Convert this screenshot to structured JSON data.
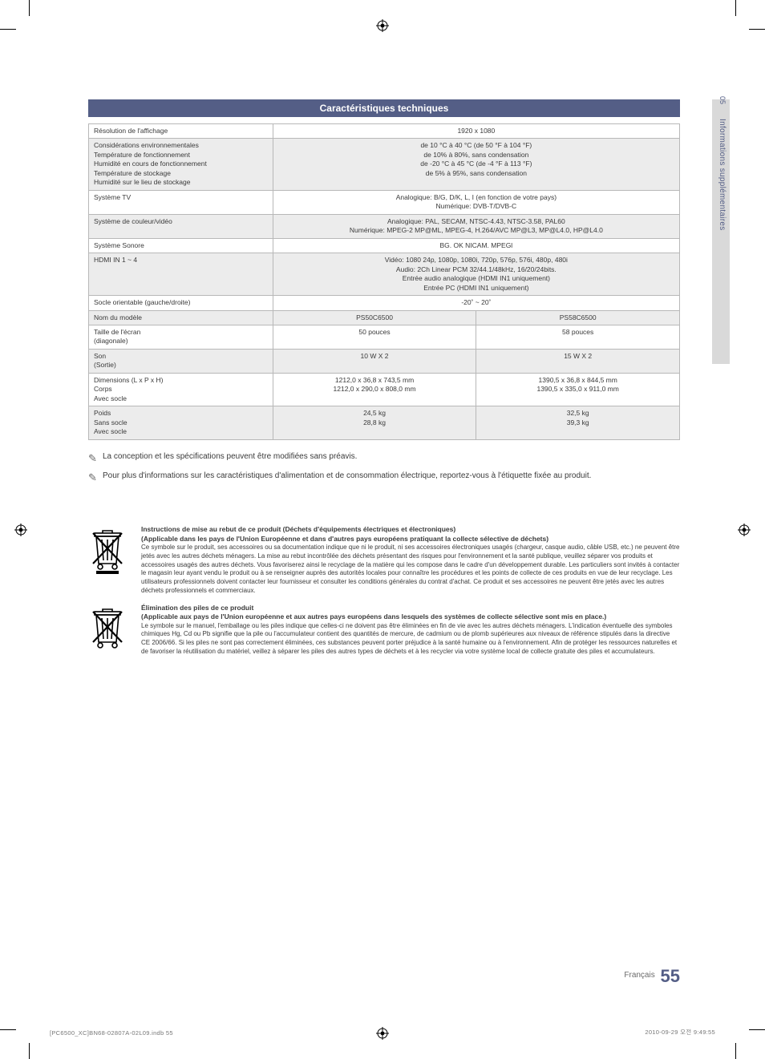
{
  "page": {
    "side_tab_number": "05",
    "side_tab_text": "Informations supplémentaires",
    "title": "Caractéristiques techniques",
    "footer_lang": "Français",
    "footer_page": "55",
    "imprint_left": "[PC6500_XC]BN68-02807A-02L09.indb   55",
    "imprint_right": "2010-09-29   오전 9:49:55"
  },
  "spec_rows_top": [
    {
      "label": "Résolution de l'affichage",
      "value": "1920 x 1080",
      "shade": false
    },
    {
      "label": "Considérations environnementales\nTempérature de fonctionnement\nHumidité en cours de fonctionnement\nTempérature de stockage\nHumidité sur le lieu de stockage",
      "value": "de 10 °C à 40 °C (de 50 °F à 104 °F)\nde 10% à 80%, sans condensation\nde -20 °C à 45 °C (de -4 °F à 113 °F)\nde 5% à 95%, sans condensation",
      "shade": true
    },
    {
      "label": "Système TV",
      "value": "Analogique: B/G, D/K, L, I (en fonction de votre pays)\nNumérique: DVB-T/DVB-C",
      "shade": false
    },
    {
      "label": "Système de couleur/vidéo",
      "value": "Analogique: PAL, SECAM, NTSC-4.43, NTSC-3.58, PAL60\nNumérique: MPEG-2 MP@ML, MPEG-4, H.264/AVC MP@L3, MP@L4.0, HP@L4.0",
      "shade": true
    },
    {
      "label": "Système Sonore",
      "value": "BG. OK NICAM. MPEGl",
      "shade": false
    },
    {
      "label": "HDMI IN 1 ~ 4",
      "value": "Vidéo: 1080 24p, 1080p, 1080i, 720p, 576p, 576i, 480p, 480i\nAudio: 2Ch Linear PCM 32/44.1/48kHz, 16/20/24bits.\nEntrée audio analogique (HDMI IN1 uniquement)\nEntrée PC (HDMI IN1 uniquement)",
      "shade": true
    },
    {
      "label": "Socle orientable (gauche/droite)",
      "value": "-20˚ ~ 20˚",
      "shade": false
    }
  ],
  "spec_models": {
    "header_label": "Nom du modèle",
    "model_a": "PS50C6500",
    "model_b": "PS58C6500",
    "rows": [
      {
        "label": "Taille de l'écran\n(diagonale)",
        "a": "50 pouces",
        "b": "58 pouces",
        "shade": false
      },
      {
        "label": "Son\n(Sortie)",
        "a": "10 W X 2",
        "b": "15 W X 2",
        "shade": true
      },
      {
        "label": "Dimensions (L x P x H)\nCorps\nAvec socle",
        "a": "1212,0 x 36,8 x 743,5 mm\n1212,0 x 290,0 x 808,0 mm",
        "b": "1390,5 x 36,8 x 844,5 mm\n1390,5 x 335,0 x 911,0 mm",
        "shade": false
      },
      {
        "label": "Poids\nSans socle\nAvec socle",
        "a": "24,5 kg\n28,8 kg",
        "b": "32,5 kg\n39,3 kg",
        "shade": true
      }
    ]
  },
  "notes": [
    "La conception et les spécifications peuvent être modifiées sans préavis.",
    "Pour plus d'informations sur les caractéristiques d'alimentation et de consommation électrique, reportez-vous à l'étiquette fixée au produit."
  ],
  "dispose1": {
    "h1": "Instructions de mise au rebut de ce produit (Déchets d'équipements électriques et électroniques)",
    "h2": "(Applicable dans les pays de l'Union Européenne et dans d'autres pays européens pratiquant la collecte sélective de déchets)",
    "body": "Ce symbole sur le produit, ses accessoires ou sa documentation indique que ni le produit, ni ses accessoires électroniques usagés (chargeur, casque audio, câble USB, etc.) ne peuvent être jetés avec les autres déchets ménagers. La mise au rebut incontrôlée des déchets présentant des risques pour l'environnement et la santé publique, veuillez séparer vos produits et accessoires usagés des autres déchets. Vous favoriserez ainsi le recyclage de la matière qui les compose dans le cadre d'un développement durable. Les particuliers sont invités à contacter le magasin leur ayant vendu le produit ou à se renseigner auprès des autorités locales pour connaître les procédures et les points de collecte de ces produits en vue de leur recyclage. Les utilisateurs professionnels doivent contacter leur fournisseur et consulter les conditions générales du contrat d'achat. Ce produit et ses accessoires ne peuvent être jetés avec les autres déchets professionnels et commerciaux."
  },
  "dispose2": {
    "h1": "Élimination des piles de ce produit",
    "h2": "(Applicable aux pays de l'Union européenne et aux autres pays européens dans lesquels des systèmes de collecte sélective sont mis en place.)",
    "body": "Le symbole sur le manuel, l'emballage ou les piles indique que celles-ci ne doivent pas être éliminées en fin de vie avec les autres déchets ménagers. L'indication éventuelle des symboles chimiques Hg, Cd ou Pb signifie que la pile ou l'accumulateur contient des quantités de mercure, de cadmium ou de plomb supérieures aux niveaux de référence stipulés dans la directive CE 2006/66. Si les piles ne sont pas correctement éliminées, ces substances peuvent porter préjudice à la santé humaine ou à l'environnement. Afin de protéger les ressources naturelles et de favoriser la réutilisation du matériel, veillez à séparer les piles des autres types de déchets et à les recycler via votre système local de collecte gratuite des piles et accumulateurs."
  },
  "colors": {
    "accent": "#545e86",
    "shade_bg": "#ececec",
    "border": "#b8b8b8",
    "side_tab_bg": "#d9d9d9",
    "text": "#3a3a3a"
  }
}
